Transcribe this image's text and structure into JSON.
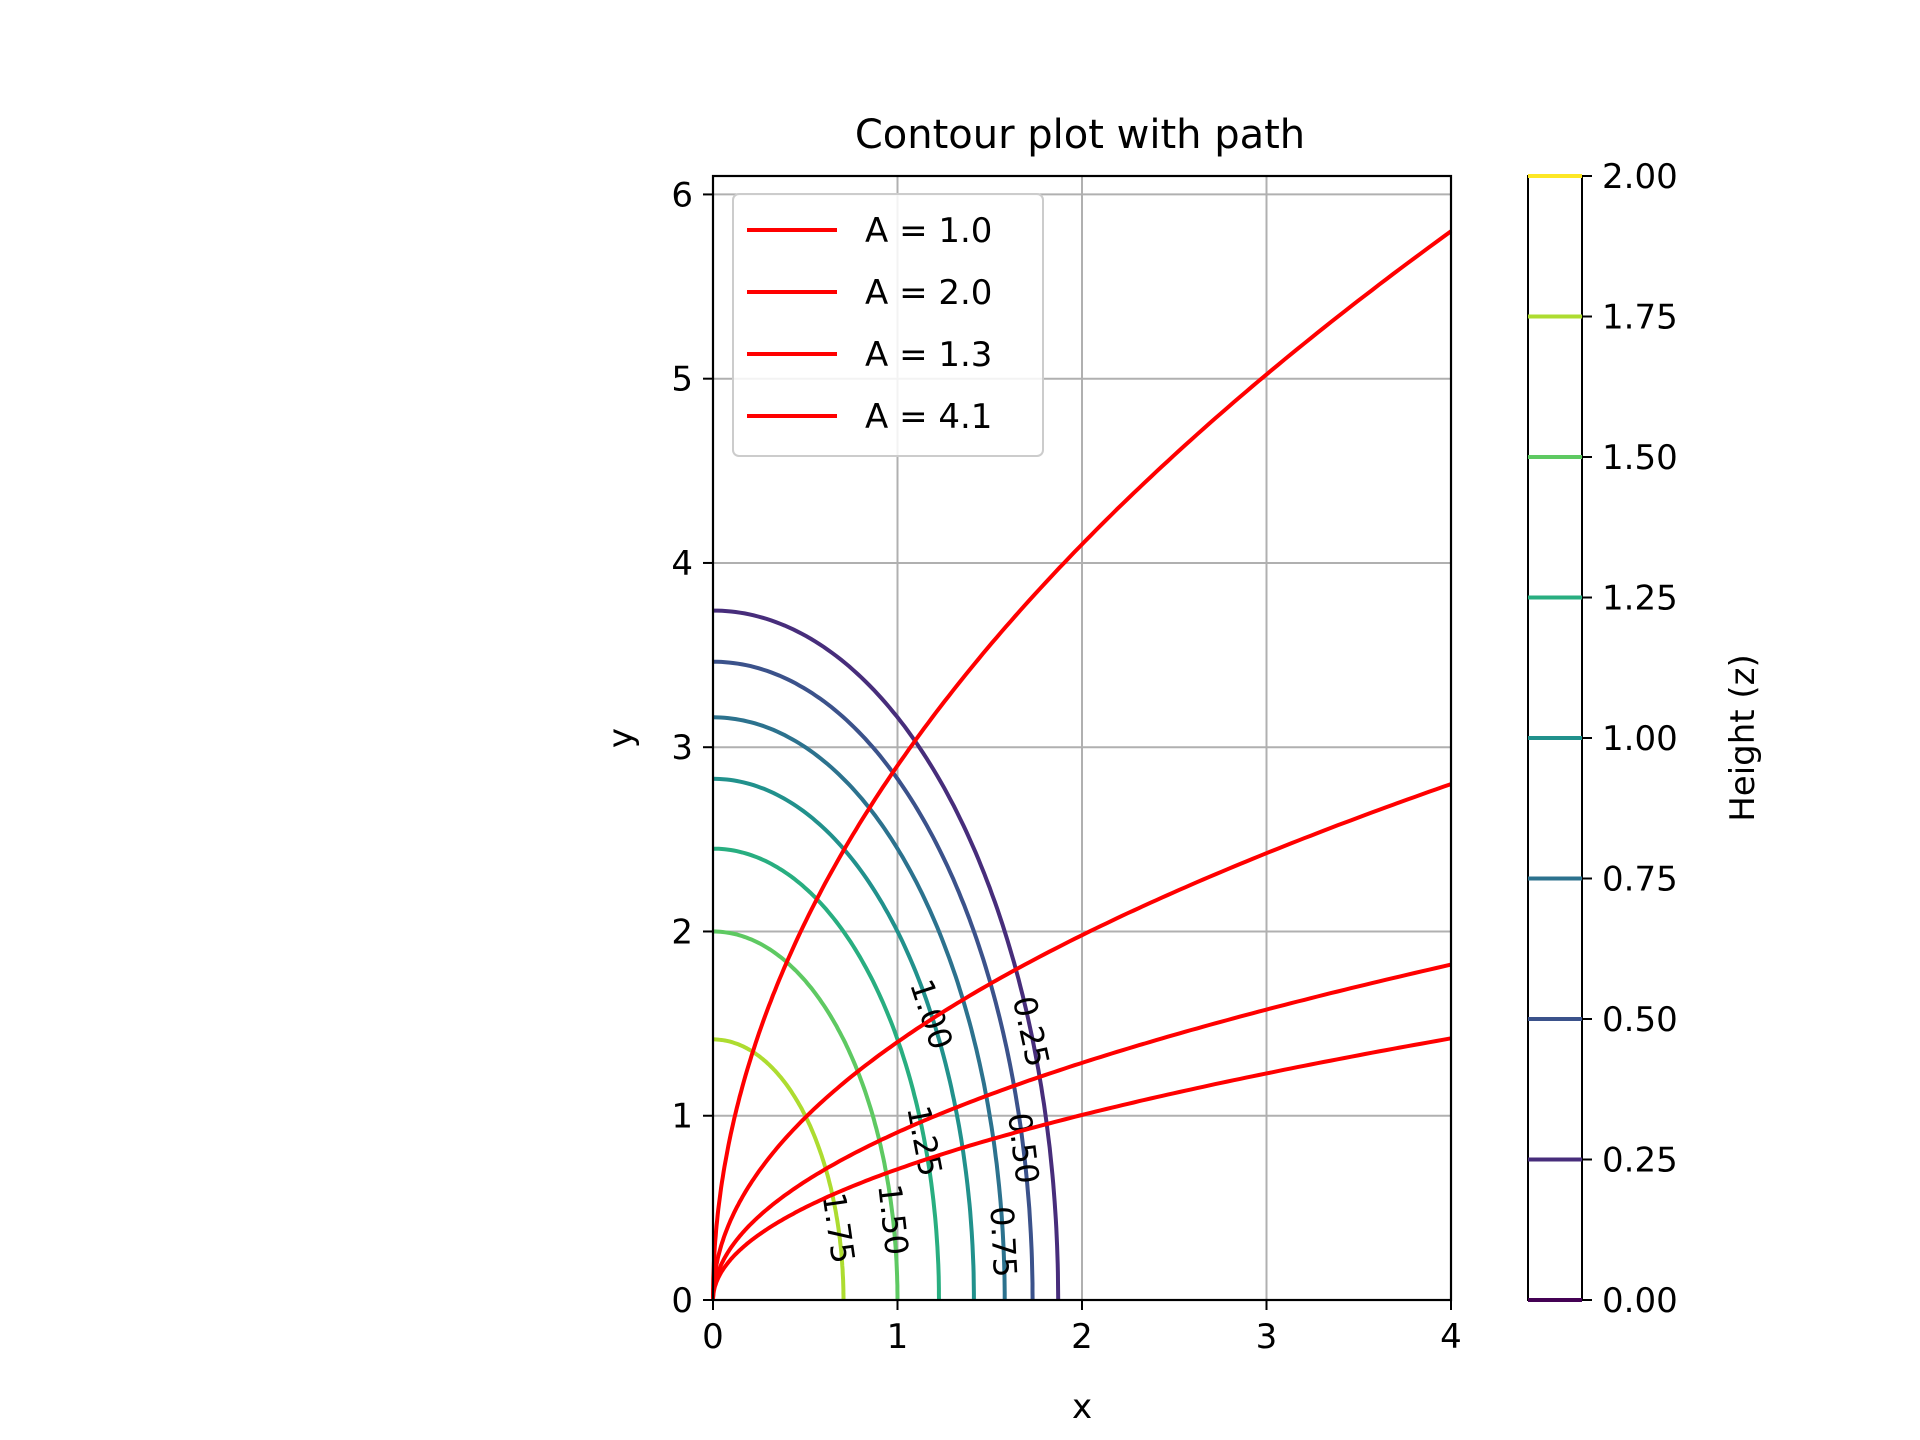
{
  "chart_data": {
    "type": "contour",
    "title": "Contour plot with path",
    "xlabel": "x",
    "ylabel": "y",
    "xlim": [
      0,
      4
    ],
    "ylim": [
      0,
      6.1
    ],
    "xticks": [
      "0",
      "1",
      "2",
      "3",
      "4"
    ],
    "yticks": [
      "0",
      "1",
      "2",
      "3",
      "4",
      "5",
      "6"
    ],
    "grid": true,
    "legend_placement": "upper-left",
    "contour_function": "z = 2 - x^2/2 - y^2/8 (elliptical level sets)",
    "contour_levels": [
      {
        "level": 0.25,
        "label": "0.25",
        "color": "#472d7b"
      },
      {
        "level": 0.5,
        "label": "0.50",
        "color": "#3b528b"
      },
      {
        "level": 0.75,
        "label": "0.75",
        "color": "#2c728e"
      },
      {
        "level": 1.0,
        "label": "1.00",
        "color": "#21918c"
      },
      {
        "level": 1.25,
        "label": "1.25",
        "color": "#28ae80"
      },
      {
        "level": 1.5,
        "label": "1.50",
        "color": "#5ec962"
      },
      {
        "level": 1.75,
        "label": "1.75",
        "color": "#addc30"
      }
    ],
    "series": [
      {
        "name": "A = 1.0",
        "color": "#ff0000",
        "equation": "y = 1.0 * 2.9 * x^0.5"
      },
      {
        "name": "A = 2.0",
        "color": "#ff0000",
        "equation": "y = 2.0 * 0.7 * x^0.5"
      },
      {
        "name": "A = 1.3",
        "color": "#ff0000",
        "equation": "y = 1.3 * 0.7 * x^0.5"
      },
      {
        "name": "A = 4.1",
        "color": "#ff0000",
        "equation": "y = 4.1 * 0.7 * x^0.5"
      }
    ],
    "colorbar": {
      "label": "Height (z)",
      "range": [
        0,
        2
      ],
      "ticks": [
        "0.00",
        "0.25",
        "0.50",
        "0.75",
        "1.00",
        "1.25",
        "1.50",
        "1.75",
        "2.00"
      ],
      "end_colors": {
        "min": "#440154",
        "max": "#fde725"
      }
    }
  }
}
